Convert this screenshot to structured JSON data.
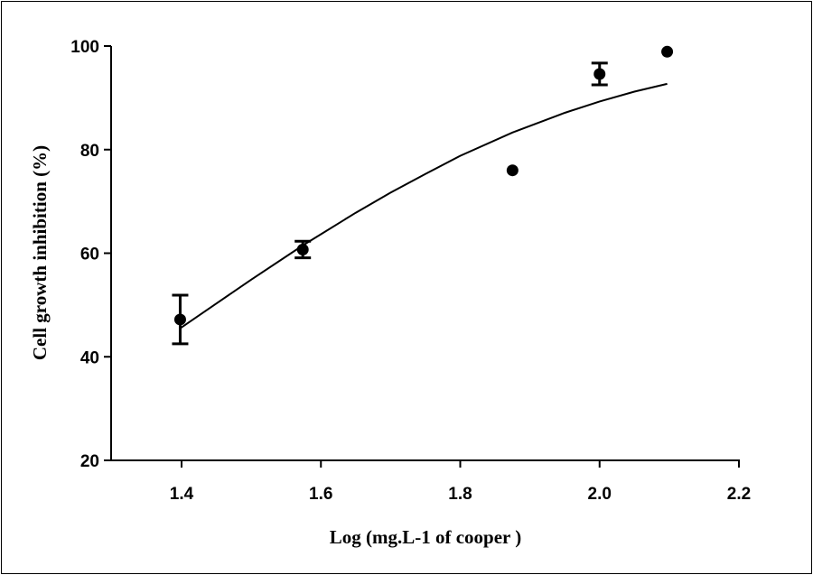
{
  "chart_data": {
    "type": "scatter",
    "title": "",
    "xlabel": "Log (mg.L-1 of cooper )",
    "ylabel": "Cell growth inhibition (%)",
    "xlim": [
      1.25,
      2.2
    ],
    "ylim": [
      20,
      100
    ],
    "x_ticks": [
      1.4,
      1.6,
      1.8,
      2.0,
      2.2
    ],
    "x_tick_labels": [
      "1.4",
      "1.6",
      "1.8",
      "2.0",
      "2.2"
    ],
    "y_ticks": [
      20,
      40,
      60,
      80,
      100
    ],
    "y_tick_labels": [
      "20",
      "40",
      "60",
      "80",
      "100"
    ],
    "grid": false,
    "legend": "none",
    "points": [
      {
        "x": 1.398,
        "y": 47.2,
        "err": 4.7
      },
      {
        "x": 1.574,
        "y": 60.7,
        "err": 1.6
      },
      {
        "x": 1.875,
        "y": 76.0,
        "err": 0
      },
      {
        "x": 2.0,
        "y": 94.6,
        "err": 2.1
      },
      {
        "x": 2.097,
        "y": 98.9,
        "err": 0
      }
    ],
    "fit_curve": {
      "x": [
        1.398,
        1.45,
        1.5,
        1.574,
        1.65,
        1.7,
        1.75,
        1.8,
        1.875,
        1.95,
        2.0,
        2.05,
        2.097
      ],
      "y": [
        45.5,
        50.3,
        54.9,
        61.5,
        67.8,
        71.7,
        75.3,
        78.8,
        83.3,
        87.1,
        89.3,
        91.2,
        92.7
      ]
    },
    "colors": {
      "marker": "#000000",
      "line": "#000000"
    }
  }
}
